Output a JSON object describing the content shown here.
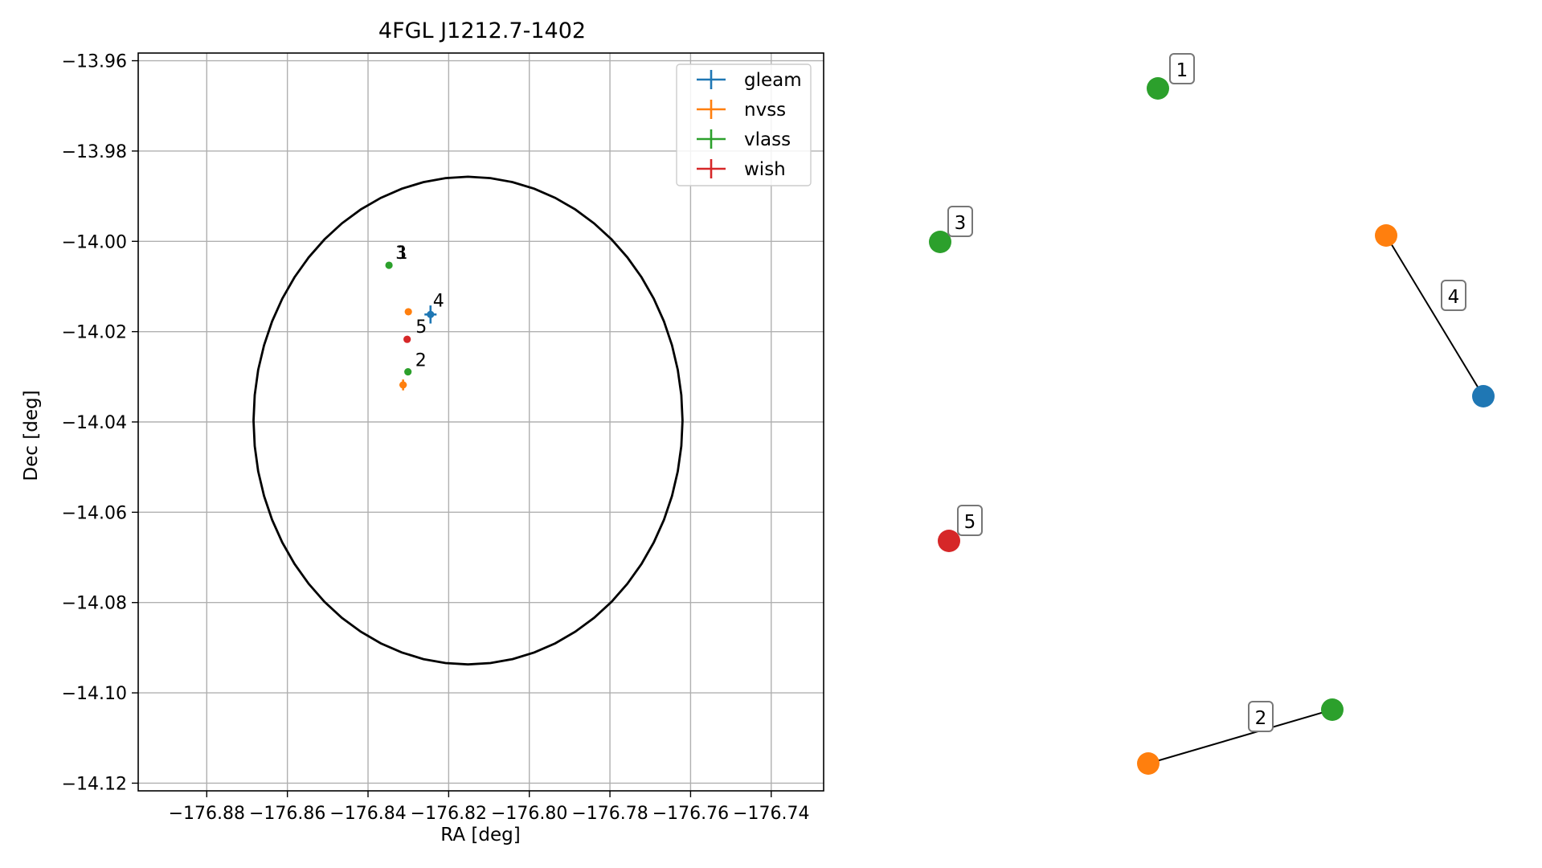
{
  "chart_data": [
    {
      "type": "scatter",
      "title": "4FGL J1212.7-1402",
      "xlabel": "RA [deg]",
      "ylabel": "Dec [deg]",
      "xlim": [
        -176.897,
        -176.727
      ],
      "ylim": [
        -14.1217,
        -13.9583
      ],
      "grid": true,
      "legend_position": "top-right",
      "x_ticks": [
        -176.88,
        -176.86,
        -176.84,
        -176.82,
        -176.8,
        -176.78,
        -176.76,
        -176.74
      ],
      "x_tick_labels": [
        "−176.88",
        "−176.86",
        "−176.84",
        "−176.82",
        "−176.80",
        "−176.78",
        "−176.76",
        "−176.74"
      ],
      "y_ticks": [
        -13.96,
        -13.98,
        -14.0,
        -14.02,
        -14.04,
        -14.06,
        -14.08,
        -14.1,
        -14.12
      ],
      "y_tick_labels": [
        "−13.96",
        "−13.98",
        "−14.00",
        "−14.02",
        "−14.04",
        "−14.06",
        "−14.08",
        "−14.10",
        "−14.12"
      ],
      "ellipse": {
        "center": [
          -176.8152,
          -14.0397
        ],
        "semi_axis_ra": 0.0532,
        "semi_axis_dec": 0.054,
        "color": "#000000"
      },
      "series": [
        {
          "name": "gleam",
          "color": "#1f77b4",
          "points": [
            {
              "x": -176.8245,
              "y": -14.0162,
              "xerr": 0.0015,
              "yerr": 0.002
            }
          ]
        },
        {
          "name": "nvss",
          "color": "#ff7f0e",
          "points": [
            {
              "x": -176.83,
              "y": -14.0156,
              "xerr": 0.0003,
              "yerr": 0.0004
            },
            {
              "x": -176.8313,
              "y": -14.0318,
              "xerr": 0.0009,
              "yerr": 0.0012
            }
          ]
        },
        {
          "name": "vlass",
          "color": "#2ca02c",
          "points": [
            {
              "x": -176.8348,
              "y": -14.0053
            },
            {
              "x": -176.8301,
              "y": -14.0289
            }
          ]
        },
        {
          "name": "wish",
          "color": "#d62728",
          "points": [
            {
              "x": -176.8303,
              "y": -14.0217
            }
          ]
        }
      ],
      "annotations": [
        {
          "text": "3",
          "x": -176.8332,
          "y": -14.0039
        },
        {
          "text": "1",
          "x": -176.8329,
          "y": -14.0039
        },
        {
          "text": "4",
          "x": -176.8239,
          "y": -14.0145
        },
        {
          "text": "5",
          "x": -176.8282,
          "y": -14.0202
        },
        {
          "text": "2",
          "x": -176.8283,
          "y": -14.0276
        }
      ]
    },
    {
      "type": "network",
      "nodes": [
        {
          "id": "n1",
          "color": "#2ca02c"
        },
        {
          "id": "n3",
          "color": "#2ca02c"
        },
        {
          "id": "n4a",
          "color": "#ff7f0e"
        },
        {
          "id": "n4b",
          "color": "#1f77b4"
        },
        {
          "id": "n5",
          "color": "#d62728"
        },
        {
          "id": "n2a",
          "color": "#ff7f0e"
        },
        {
          "id": "n2b",
          "color": "#2ca02c"
        }
      ],
      "edges": [
        {
          "source": "n4a",
          "target": "n4b"
        },
        {
          "source": "n2a",
          "target": "n2b"
        }
      ],
      "labels": [
        {
          "text": "1"
        },
        {
          "text": "3"
        },
        {
          "text": "4"
        },
        {
          "text": "5"
        },
        {
          "text": "2"
        }
      ]
    }
  ]
}
